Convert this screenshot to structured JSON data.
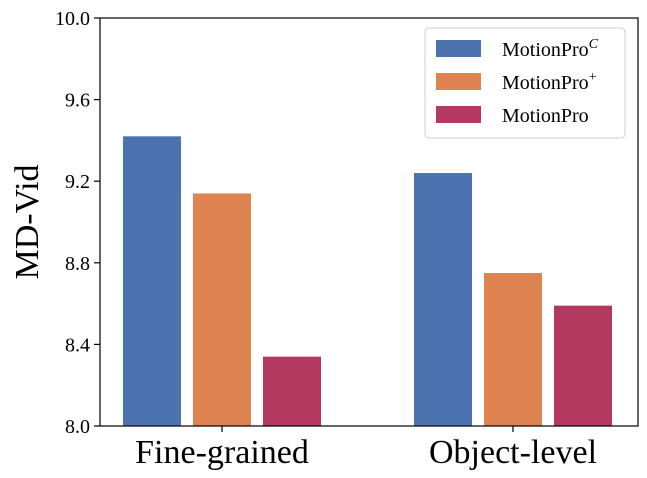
{
  "chart_data": {
    "type": "bar",
    "title": "",
    "xlabel": "",
    "ylabel": "MD-Vid",
    "ylim": [
      8.0,
      10.0
    ],
    "yticks": [
      "8.0",
      "8.4",
      "8.8",
      "9.2",
      "9.6",
      "10.0"
    ],
    "categories": [
      "Fine-grained",
      "Object-level"
    ],
    "series": [
      {
        "name": "MotionPro",
        "sup": "C",
        "color": "#4c72b0",
        "values": [
          9.42,
          9.24
        ]
      },
      {
        "name": "MotionPro",
        "sup": "+",
        "color": "#dd8452",
        "values": [
          9.14,
          8.75
        ]
      },
      {
        "name": "MotionPro",
        "sup": "",
        "color": "#b33961",
        "values": [
          8.34,
          8.59
        ]
      }
    ],
    "legend_position": "top-right",
    "grid": false
  }
}
